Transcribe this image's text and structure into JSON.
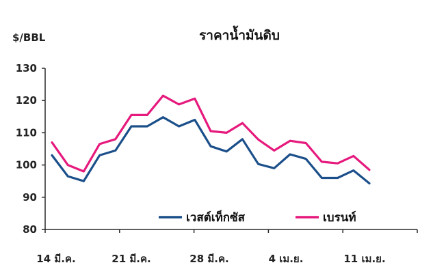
{
  "chart_data": {
    "type": "line",
    "title": "ราคาน้ำมันดิบ",
    "ylabel": "$/BBL",
    "xlabel": "",
    "ylim": [
      80,
      130
    ],
    "yticks": [
      80,
      90,
      100,
      110,
      120,
      130
    ],
    "x": [
      "14 มี.ค.",
      "15 มี.ค.",
      "16 มี.ค.",
      "17 มี.ค.",
      "18 มี.ค.",
      "21 มี.ค.",
      "22 มี.ค.",
      "23 มี.ค.",
      "24 มี.ค.",
      "25 มี.ค.",
      "28 มี.ค.",
      "29 มี.ค.",
      "30 มี.ค.",
      "31 มี.ค.",
      "1 เม.ย.",
      "4 เม.ย.",
      "5 เม.ย.",
      "6 เม.ย.",
      "7 เม.ย.",
      "8 เม.ย.",
      "11 เม.ย."
    ],
    "xtick_labels": [
      "14 มี.ค.",
      "21 มี.ค.",
      "28 มี.ค.",
      "4 เม.ย.",
      "11 เม.ย."
    ],
    "series": [
      {
        "name": "เวสต์เท็กซัส",
        "color": "#1b4f8a",
        "values": [
          103.0,
          96.5,
          95.0,
          103.0,
          104.5,
          112.0,
          112.0,
          114.8,
          112.0,
          114.0,
          105.8,
          104.2,
          108.0,
          100.3,
          99.0,
          103.3,
          101.9,
          96.0,
          96.0,
          98.3,
          94.3
        ]
      },
      {
        "name": "เบรนท์",
        "color": "#e6197d",
        "values": [
          107.0,
          100.0,
          98.0,
          106.5,
          108.0,
          115.5,
          115.5,
          121.5,
          118.8,
          120.6,
          110.5,
          110.0,
          113.0,
          107.9,
          104.5,
          107.5,
          106.8,
          101.0,
          100.5,
          102.8,
          98.5
        ]
      }
    ],
    "grid": false,
    "legend_position": "bottom-right"
  }
}
